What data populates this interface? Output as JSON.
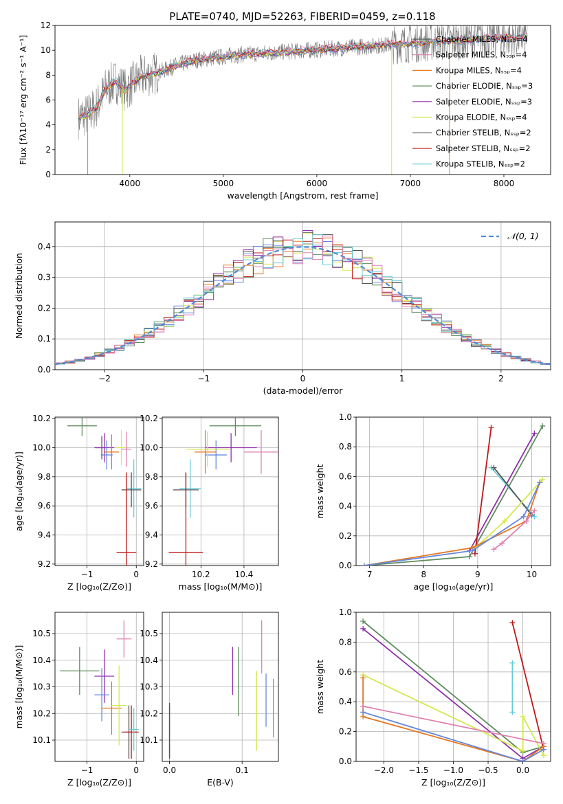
{
  "figure_title": "PLATE=0740, MJD=52263, FIBERID=0459, z=0.118",
  "model_colors": [
    "#6688dd",
    "#e87820",
    "#5e8c5e",
    "#8e2faa",
    "#d4e84e",
    "#555555",
    "#c01818",
    "#66ccd8",
    "#e080b0"
  ],
  "chart_data": [
    {
      "type": "line",
      "title": "PLATE=0740, MJD=52263, FIBERID=0459, z=0.118",
      "xlabel": "wavelength [Angstrom, rest frame]",
      "ylabel": "Flux [fλ10⁻¹⁷ erg cm⁻² s⁻¹ A⁻¹]",
      "xlim": [
        3200,
        8500
      ],
      "ylim": [
        0,
        12
      ],
      "xticks": [
        "4000",
        "5000",
        "6000",
        "7000",
        "8000"
      ],
      "yticks": [
        "0",
        "2",
        "4",
        "6",
        "8",
        "10",
        "12"
      ],
      "grid": false,
      "legend_position": "right",
      "legend": [
        {
          "label": "Chabrier MILES, Nₛₛₚ=4",
          "color": "#555555"
        },
        {
          "label": "Salpeter MILES, Nₛₛₚ=4",
          "color": "#e080b0"
        },
        {
          "label": "Kroupa MILES, Nₛₛₚ=4",
          "color": "#e87820"
        },
        {
          "label": "Chabrier ELODIE, Nₛₛₚ=3",
          "color": "#5e8c5e"
        },
        {
          "label": "Salpeter ELODIE, Nₛₛₚ=3",
          "color": "#8e2faa"
        },
        {
          "label": "Kroupa ELODIE, Nₛₛₚ=4",
          "color": "#d4e84e"
        },
        {
          "label": "Chabrier STELIB, Nₛₛₚ=2",
          "color": "#555555"
        },
        {
          "label": "Salpeter STELIB, Nₛₛₚ=2",
          "color": "#c01818"
        },
        {
          "label": "Kroupa STELIB, Nₛₛₚ=2",
          "color": "#66ccd8"
        }
      ],
      "continuum": [
        [
          3450,
          4.6
        ],
        [
          3550,
          4.8
        ],
        [
          3650,
          5.5
        ],
        [
          3750,
          7.0
        ],
        [
          3850,
          7.5
        ],
        [
          3950,
          6.8
        ],
        [
          4100,
          7.8
        ],
        [
          4300,
          8.2
        ],
        [
          4500,
          8.8
        ],
        [
          4700,
          9.2
        ],
        [
          4900,
          9.4
        ],
        [
          5100,
          9.6
        ],
        [
          5300,
          9.7
        ],
        [
          5500,
          9.8
        ],
        [
          5700,
          9.9
        ],
        [
          5900,
          10.0
        ],
        [
          6100,
          10.1
        ],
        [
          6300,
          10.2
        ],
        [
          6500,
          10.3
        ],
        [
          6700,
          10.4
        ],
        [
          6900,
          10.5
        ],
        [
          7100,
          10.6
        ],
        [
          7300,
          10.7
        ],
        [
          7500,
          10.8
        ],
        [
          7700,
          10.9
        ],
        [
          7900,
          11.0
        ],
        [
          8100,
          11.0
        ],
        [
          8250,
          11.1
        ]
      ],
      "dips": [
        {
          "x": 3550,
          "y": 0
        },
        {
          "x": 3920,
          "y": 0
        },
        {
          "x": 6800,
          "y": 0
        },
        {
          "x": 7420,
          "y": 0
        }
      ]
    },
    {
      "type": "histogram",
      "xlabel": "(data-model)/error",
      "ylabel": "Normed distribution",
      "xlim": [
        -2.5,
        2.5
      ],
      "ylim": [
        0,
        0.48
      ],
      "xticks": [
        "−2",
        "−1",
        "0",
        "1",
        "2"
      ],
      "yticks": [
        "0.0",
        "0.1",
        "0.2",
        "0.3",
        "0.4"
      ],
      "grid": true,
      "legend_position": "top-right",
      "legend": [
        {
          "label": "𝒩(0, 1)",
          "color": "#4f8ad6",
          "style": "dashed"
        }
      ],
      "bin_width": 0.1,
      "n_models": 9
    },
    {
      "type": "scatter",
      "xlabel": "Z [log₁₀(Z/Z⊙)]",
      "ylabel": "age  [log₁₀(age/yr)]",
      "xlim": [
        -1.65,
        0.15
      ],
      "ylim": [
        9.19,
        10.21
      ],
      "xticks": [
        "−1",
        "0"
      ],
      "yticks": [
        "9.2",
        "9.4",
        "9.6",
        "9.8",
        "10.0",
        "10.2"
      ],
      "grid": true,
      "points": [
        {
          "x": -1.1,
          "y": 10.15,
          "xerr": 0.3,
          "yerr": 0.07,
          "color": "#5e8c5e"
        },
        {
          "x": -0.7,
          "y": 10.0,
          "xerr": 0.12,
          "yerr": 0.08,
          "color": "#555555"
        },
        {
          "x": -0.65,
          "y": 10.0,
          "xerr": 0.2,
          "yerr": 0.1,
          "color": "#8e2faa"
        },
        {
          "x": -0.6,
          "y": 9.95,
          "xerr": 0.12,
          "yerr": 0.1,
          "color": "#6688dd"
        },
        {
          "x": -0.5,
          "y": 9.97,
          "xerr": 0.15,
          "yerr": 0.12,
          "color": "#e87820"
        },
        {
          "x": -0.3,
          "y": 10.0,
          "xerr": 0.1,
          "yerr": 0.12,
          "color": "#d4e84e"
        },
        {
          "x": -0.2,
          "y": 9.99,
          "xerr": 0.1,
          "yerr": 0.12,
          "color": "#e080b0"
        },
        {
          "x": -0.05,
          "y": 9.72,
          "xerr": 0.15,
          "yerr": 0.2,
          "color": "#66ccd8"
        },
        {
          "x": -0.1,
          "y": 9.71,
          "xerr": 0.2,
          "yerr": 0.12,
          "color": "#555555"
        },
        {
          "x": -0.2,
          "y": 9.28,
          "xerr": 0.2,
          "yerr": 0.55,
          "color": "#c01818"
        }
      ]
    },
    {
      "type": "scatter",
      "xlabel": "mass [log₁₀(M/M⊙)]",
      "ylabel": "",
      "xlim": [
        10.02,
        10.56
      ],
      "ylim": [
        9.19,
        10.21
      ],
      "xticks": [
        "10.2",
        "10.4"
      ],
      "yticks": [
        "9.2",
        "9.4",
        "9.6",
        "9.8",
        "10.0",
        "10.2"
      ],
      "grid": true,
      "points": [
        {
          "x": 10.36,
          "y": 10.15,
          "xerr": 0.12,
          "yerr": 0.07,
          "color": "#5e8c5e"
        },
        {
          "x": 10.34,
          "y": 10.0,
          "xerr": 0.12,
          "yerr": 0.1,
          "color": "#8e2faa"
        },
        {
          "x": 10.27,
          "y": 9.95,
          "xerr": 0.05,
          "yerr": 0.1,
          "color": "#6688dd"
        },
        {
          "x": 10.22,
          "y": 9.97,
          "xerr": 0.05,
          "yerr": 0.15,
          "color": "#e87820"
        },
        {
          "x": 10.23,
          "y": 9.99,
          "xerr": 0.1,
          "yerr": 0.12,
          "color": "#d4e84e"
        },
        {
          "x": 10.48,
          "y": 9.97,
          "xerr": 0.08,
          "yerr": 0.15,
          "color": "#e080b0"
        },
        {
          "x": 10.15,
          "y": 9.72,
          "xerr": 0.05,
          "yerr": 0.2,
          "color": "#66ccd8"
        },
        {
          "x": 10.13,
          "y": 9.71,
          "xerr": 0.06,
          "yerr": 0.12,
          "color": "#555555"
        },
        {
          "x": 10.13,
          "y": 9.28,
          "xerr": 0.08,
          "yerr": 0.55,
          "color": "#c01818"
        }
      ]
    },
    {
      "type": "line",
      "xlabel": "age  [log₁₀(age/yr)]",
      "ylabel": "mass weight",
      "xlim": [
        6.75,
        10.35
      ],
      "ylim": [
        0,
        1
      ],
      "xticks": [
        "7",
        "8",
        "9",
        "10"
      ],
      "yticks": [
        "0.0",
        "0.2",
        "0.4",
        "0.6",
        "0.8",
        "1.0"
      ],
      "grid": true,
      "series": [
        {
          "color": "#5e8c5e",
          "points": [
            [
              6.9,
              0.0
            ],
            [
              8.85,
              0.06
            ],
            [
              10.2,
              0.94
            ]
          ]
        },
        {
          "color": "#8e2faa",
          "points": [
            [
              8.85,
              0.1
            ],
            [
              10.05,
              0.89
            ]
          ]
        },
        {
          "color": "#c01818",
          "points": [
            [
              8.95,
              0.08
            ],
            [
              9.25,
              0.93
            ]
          ]
        },
        {
          "color": "#66ccd8",
          "points": [
            [
              9.25,
              0.66
            ],
            [
              10.05,
              0.33
            ]
          ]
        },
        {
          "color": "#555555",
          "points": [
            [
              9.3,
              0.66
            ],
            [
              10.0,
              0.34
            ]
          ]
        },
        {
          "color": "#d4e84e",
          "points": [
            [
              8.9,
              0.1
            ],
            [
              9.5,
              0.3
            ],
            [
              10.2,
              0.58
            ]
          ]
        },
        {
          "color": "#e87820",
          "points": [
            [
              6.9,
              0.0
            ],
            [
              8.9,
              0.12
            ],
            [
              9.9,
              0.3
            ],
            [
              10.15,
              0.56
            ]
          ]
        },
        {
          "color": "#6688dd",
          "points": [
            [
              6.9,
              0.0
            ],
            [
              8.9,
              0.1
            ],
            [
              9.85,
              0.33
            ],
            [
              10.15,
              0.56
            ]
          ]
        },
        {
          "color": "#e080b0",
          "points": [
            [
              9.3,
              0.11
            ],
            [
              9.45,
              0.15
            ],
            [
              9.9,
              0.3
            ],
            [
              10.05,
              0.37
            ]
          ]
        }
      ]
    },
    {
      "type": "scatter",
      "xlabel": "Z [log₁₀(Z/Z⊙)]",
      "ylabel": "mass [log₁₀(M/M⊙)]",
      "xlim": [
        -1.65,
        0.15
      ],
      "ylim": [
        10.02,
        10.58
      ],
      "xticks": [
        "−1",
        "0"
      ],
      "yticks": [
        "10.1",
        "10.2",
        "10.3",
        "10.4",
        "10.5"
      ],
      "grid": true,
      "points": [
        {
          "x": -1.15,
          "y": 10.36,
          "xerr": 0.4,
          "yerr": 0.09,
          "color": "#5e8c5e"
        },
        {
          "x": -0.65,
          "y": 10.34,
          "xerr": 0.2,
          "yerr": 0.1,
          "color": "#8e2faa"
        },
        {
          "x": -0.7,
          "y": 10.27,
          "xerr": 0.15,
          "yerr": 0.1,
          "color": "#6688dd"
        },
        {
          "x": -0.5,
          "y": 10.22,
          "xerr": 0.2,
          "yerr": 0.1,
          "color": "#e87820"
        },
        {
          "x": -0.35,
          "y": 10.23,
          "xerr": 0.15,
          "yerr": 0.15,
          "color": "#d4e84e"
        },
        {
          "x": -0.25,
          "y": 10.48,
          "xerr": 0.15,
          "yerr": 0.07,
          "color": "#e080b0"
        },
        {
          "x": -0.15,
          "y": 10.13,
          "xerr": 0.15,
          "yerr": 0.1,
          "color": "#555555"
        },
        {
          "x": -0.1,
          "y": 10.13,
          "xerr": 0.15,
          "yerr": 0.1,
          "color": "#c01818"
        },
        {
          "x": -0.05,
          "y": 10.14,
          "xerr": 0.1,
          "yerr": 0.08,
          "color": "#66ccd8"
        }
      ]
    },
    {
      "type": "scatter",
      "xlabel": "E(B-V)",
      "ylabel": "",
      "xlim": [
        -0.01,
        0.15
      ],
      "ylim": [
        10.02,
        10.58
      ],
      "xticks": [
        "0.0",
        "0.1"
      ],
      "yticks": [
        "10.1",
        "10.2",
        "10.3",
        "10.4",
        "10.5"
      ],
      "grid": true,
      "points": [
        {
          "x": 0.0,
          "y": 10.14,
          "yerr": 0.1,
          "color": "#c01818"
        },
        {
          "x": 0.0,
          "y": 10.13,
          "yerr": 0.1,
          "color": "#66ccd8"
        },
        {
          "x": 0.0,
          "y": 10.13,
          "yerr": 0.1,
          "color": "#555555"
        },
        {
          "x": 0.087,
          "y": 10.36,
          "yerr": 0.09,
          "color": "#8e2faa"
        },
        {
          "x": 0.095,
          "y": 10.32,
          "yerr": 0.13,
          "color": "#5e8c5e"
        },
        {
          "x": 0.12,
          "y": 10.21,
          "yerr": 0.15,
          "color": "#d4e84e"
        },
        {
          "x": 0.127,
          "y": 10.45,
          "yerr": 0.1,
          "color": "#e080b0"
        },
        {
          "x": 0.133,
          "y": 10.25,
          "yerr": 0.1,
          "color": "#6688dd"
        },
        {
          "x": 0.143,
          "y": 10.22,
          "yerr": 0.11,
          "color": "#e87820"
        }
      ]
    },
    {
      "type": "line",
      "xlabel": "Z [log₁₀(Z/Z⊙)]",
      "ylabel": "mass weight",
      "xlim": [
        -2.4,
        0.4
      ],
      "ylim": [
        0,
        1
      ],
      "xticks": [
        "−2.0",
        "−1.5",
        "−1.0",
        "−0.5",
        "0.0"
      ],
      "yticks": [
        "0.0",
        "0.2",
        "0.4",
        "0.6",
        "0.8",
        "1.0"
      ],
      "grid": true,
      "series": [
        {
          "color": "#5e8c5e",
          "points": [
            [
              -2.3,
              0.94
            ],
            [
              0.0,
              0.06
            ],
            [
              0.3,
              0.1
            ]
          ]
        },
        {
          "color": "#8e2faa",
          "points": [
            [
              -2.3,
              0.89
            ],
            [
              0.0,
              0.02
            ],
            [
              0.3,
              0.1
            ]
          ]
        },
        {
          "color": "#c01818",
          "points": [
            [
              -0.15,
              0.93
            ],
            [
              0.3,
              0.08
            ]
          ]
        },
        {
          "color": "#66ccd8",
          "points": [
            [
              -0.15,
              0.66
            ],
            [
              -0.15,
              0.33
            ]
          ]
        },
        {
          "color": "#d4e84e",
          "points": [
            [
              -2.3,
              0.58
            ],
            [
              0.0,
              0.07
            ],
            [
              0.0,
              0.3
            ],
            [
              0.3,
              0.04
            ]
          ]
        },
        {
          "color": "#e87820",
          "points": [
            [
              -2.3,
              0.56
            ],
            [
              -2.3,
              0.3
            ],
            [
              0.0,
              0.0
            ],
            [
              0.3,
              0.1
            ]
          ]
        },
        {
          "color": "#e080b0",
          "points": [
            [
              -2.3,
              0.37
            ],
            [
              0.3,
              0.12
            ]
          ]
        },
        {
          "color": "#6688dd",
          "points": [
            [
              -2.3,
              0.33
            ],
            [
              0.0,
              0.0
            ],
            [
              0.3,
              0.08
            ]
          ]
        }
      ]
    }
  ]
}
